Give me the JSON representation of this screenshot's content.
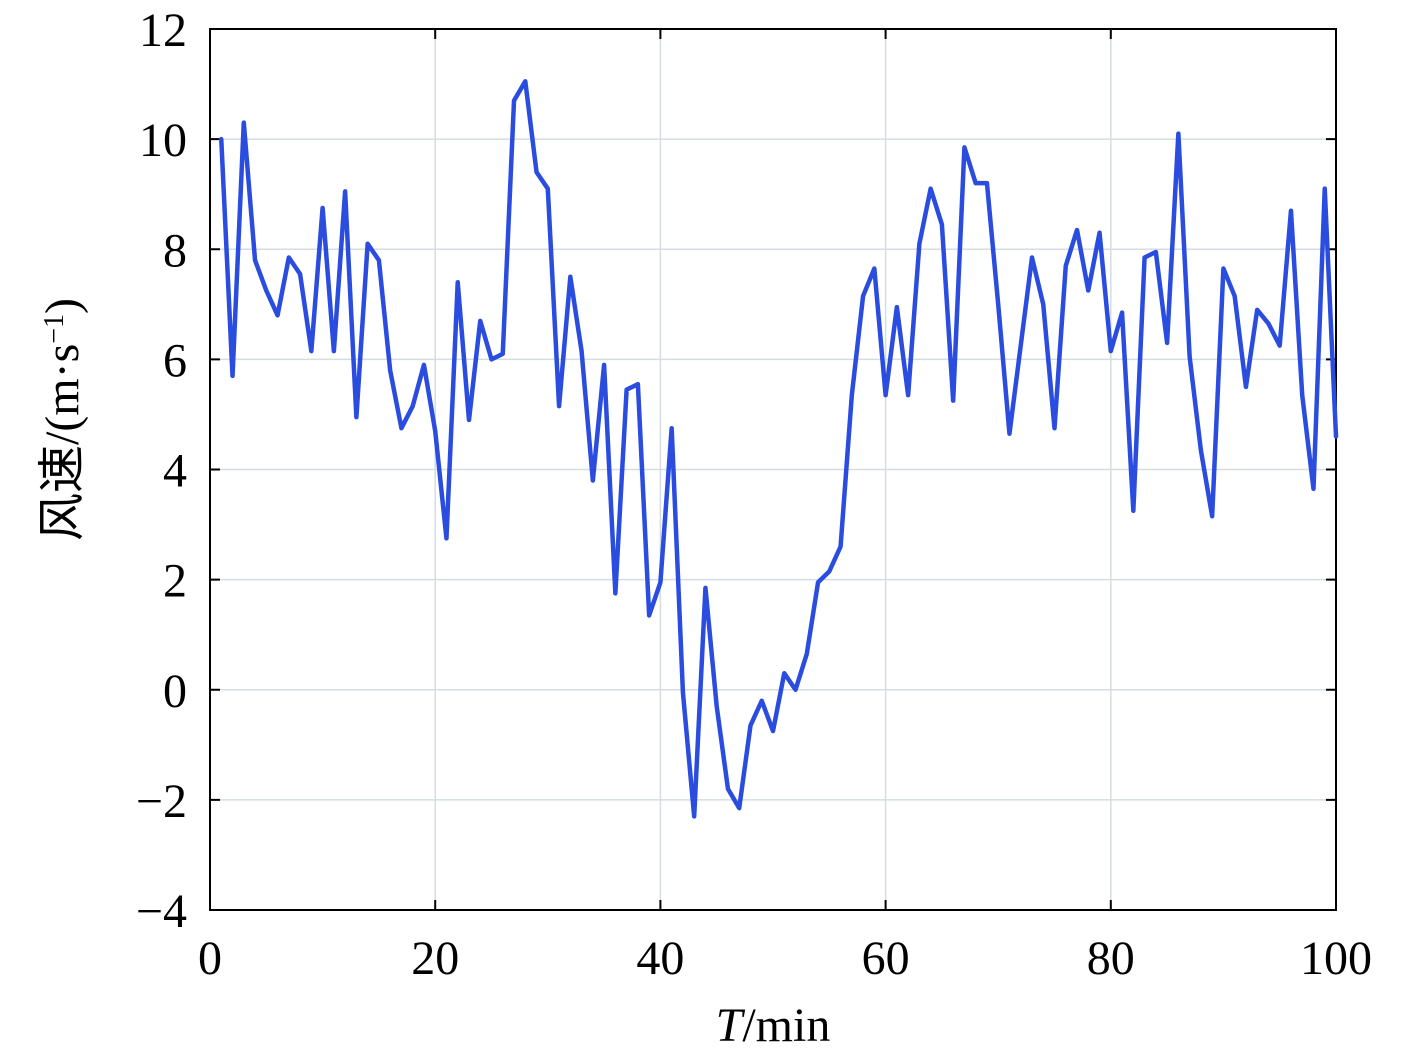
{
  "chart_data": {
    "type": "line",
    "xlabel": "T/min",
    "xlabel_italic": "T",
    "xlabel_unit": "/min",
    "ylabel": "风速/(m·s",
    "ylabel_sup": "−1",
    "ylabel_close": ")",
    "xlim": [
      0,
      100
    ],
    "ylim": [
      -4,
      12
    ],
    "x_ticks": [
      0,
      20,
      40,
      60,
      80,
      100
    ],
    "y_ticks": [
      -4,
      -2,
      0,
      2,
      4,
      6,
      8,
      10,
      12
    ],
    "x_tick_labels": [
      "0",
      "20",
      "40",
      "60",
      "80",
      "100"
    ],
    "y_tick_labels": [
      "−4",
      "−2",
      "0",
      "2",
      "4",
      "6",
      "8",
      "10",
      "12"
    ],
    "grid": true,
    "line_color": "#2a4de0",
    "series": [
      {
        "x": [
          1,
          2,
          3,
          4,
          5,
          6,
          7,
          8,
          9,
          10,
          11,
          12,
          13,
          14,
          15,
          16,
          17,
          18,
          19,
          20,
          21,
          22,
          23,
          24,
          25,
          26,
          27,
          28,
          29,
          30,
          31,
          32,
          33,
          34,
          35,
          36,
          37,
          38,
          39,
          40,
          41,
          42,
          43,
          44,
          45,
          46,
          47,
          48,
          49,
          50,
          51,
          52,
          53,
          54,
          55,
          56,
          57,
          58,
          59,
          60,
          61,
          62,
          63,
          64,
          65,
          66,
          67,
          68,
          69,
          70,
          71,
          72,
          73,
          74,
          75,
          76,
          77,
          78,
          79,
          80,
          81,
          82,
          83,
          84,
          85,
          86,
          87,
          88,
          89,
          90,
          91,
          92,
          93,
          94,
          95,
          96,
          97,
          98,
          99,
          100
        ],
        "y": [
          10.0,
          5.7,
          10.3,
          7.8,
          7.25,
          6.8,
          7.85,
          7.55,
          6.15,
          8.75,
          6.15,
          9.05,
          4.95,
          8.1,
          7.8,
          5.8,
          4.75,
          5.15,
          5.9,
          4.7,
          2.75,
          7.4,
          4.9,
          6.7,
          6.0,
          6.1,
          10.7,
          11.05,
          9.4,
          9.1,
          5.15,
          7.5,
          6.15,
          3.8,
          5.9,
          1.75,
          5.45,
          5.55,
          1.35,
          1.95,
          4.75,
          -0.05,
          -2.3,
          1.85,
          -0.3,
          -1.8,
          -2.15,
          -0.65,
          -0.2,
          -0.75,
          0.3,
          0.0,
          0.65,
          1.95,
          2.15,
          2.6,
          5.35,
          7.15,
          7.65,
          5.35,
          6.95,
          5.35,
          8.1,
          9.1,
          8.45,
          5.25,
          9.85,
          9.2,
          9.2,
          7.0,
          4.65,
          6.25,
          7.85,
          7.0,
          4.75,
          7.7,
          8.35,
          7.25,
          8.3,
          6.15,
          6.85,
          3.25,
          7.85,
          7.95,
          6.3,
          10.1,
          6.05,
          4.35,
          3.15,
          7.65,
          7.15,
          5.5,
          6.9,
          6.65,
          6.25,
          8.7,
          5.35,
          3.65,
          9.1,
          4.6
        ]
      }
    ]
  }
}
